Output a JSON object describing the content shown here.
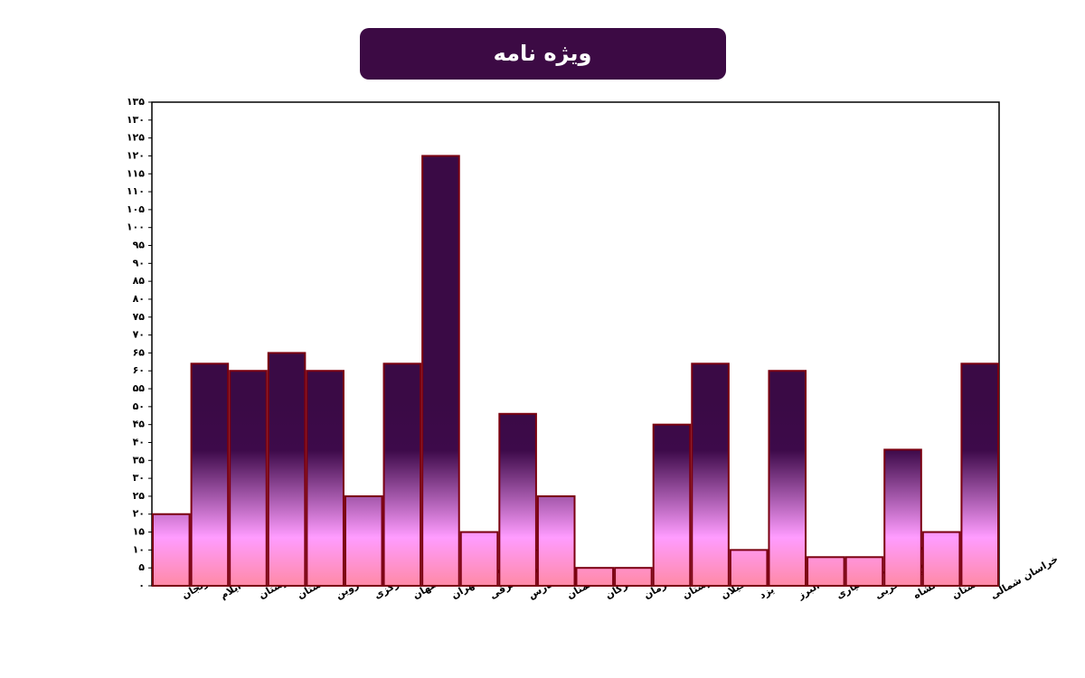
{
  "chart_data": {
    "type": "bar",
    "title": "ویژه نامه",
    "categories": [
      "زنجان",
      "ایلام",
      "لرستان",
      "گلستان",
      "قزوین",
      "مرکزی",
      "اصفهان",
      "شهرستان‌های استان تهران",
      "آذربایجان شرقی",
      "فارس",
      "سمنان",
      "هرمزگان",
      "کرمان",
      "خوزستان",
      "گیلان",
      "یزد",
      "البرز",
      "چهارمحال و بختیاری",
      "آذربایجان غربی",
      "کرمانشاه",
      "کردستان",
      "خراسان شمالی"
    ],
    "values": [
      20,
      62,
      60,
      65,
      60,
      25,
      62,
      120,
      15,
      48,
      25,
      5,
      5,
      45,
      62,
      10,
      60,
      8,
      8,
      38,
      15,
      62
    ],
    "gradient": [
      "#3a0a45",
      "#3d0a4a",
      "#ff9cff",
      "#ff8aa6"
    ],
    "edge_color": "#7a0010",
    "ylim": [
      0,
      135
    ],
    "yticks": [
      {
        "value": 0,
        "label": "۰"
      },
      {
        "value": 5,
        "label": "۵"
      },
      {
        "value": 10,
        "label": "۱۰"
      },
      {
        "value": 15,
        "label": "۱۵"
      },
      {
        "value": 20,
        "label": "۲۰"
      },
      {
        "value": 25,
        "label": "۲۵"
      },
      {
        "value": 30,
        "label": "۳۰"
      },
      {
        "value": 35,
        "label": "۳۵"
      },
      {
        "value": 40,
        "label": "۴۰"
      },
      {
        "value": 45,
        "label": "۴۵"
      },
      {
        "value": 50,
        "label": "۵۰"
      },
      {
        "value": 55,
        "label": "۵۵"
      },
      {
        "value": 60,
        "label": "۶۰"
      },
      {
        "value": 65,
        "label": "۶۵"
      },
      {
        "value": 70,
        "label": "۷۰"
      },
      {
        "value": 75,
        "label": "۷۵"
      },
      {
        "value": 80,
        "label": "۸۰"
      },
      {
        "value": 85,
        "label": "۸۵"
      },
      {
        "value": 90,
        "label": "۹۰"
      },
      {
        "value": 95,
        "label": "۹۵"
      },
      {
        "value": 100,
        "label": "۱۰۰"
      },
      {
        "value": 105,
        "label": "۱۰۵"
      },
      {
        "value": 110,
        "label": "۱۱۰"
      },
      {
        "value": 115,
        "label": "۱۱۵"
      },
      {
        "value": 120,
        "label": "۱۲۰"
      },
      {
        "value": 125,
        "label": "۱۲۵"
      },
      {
        "value": 130,
        "label": "۱۳۰"
      },
      {
        "value": 135,
        "label": "۱۳۵"
      }
    ],
    "grid": false
  }
}
